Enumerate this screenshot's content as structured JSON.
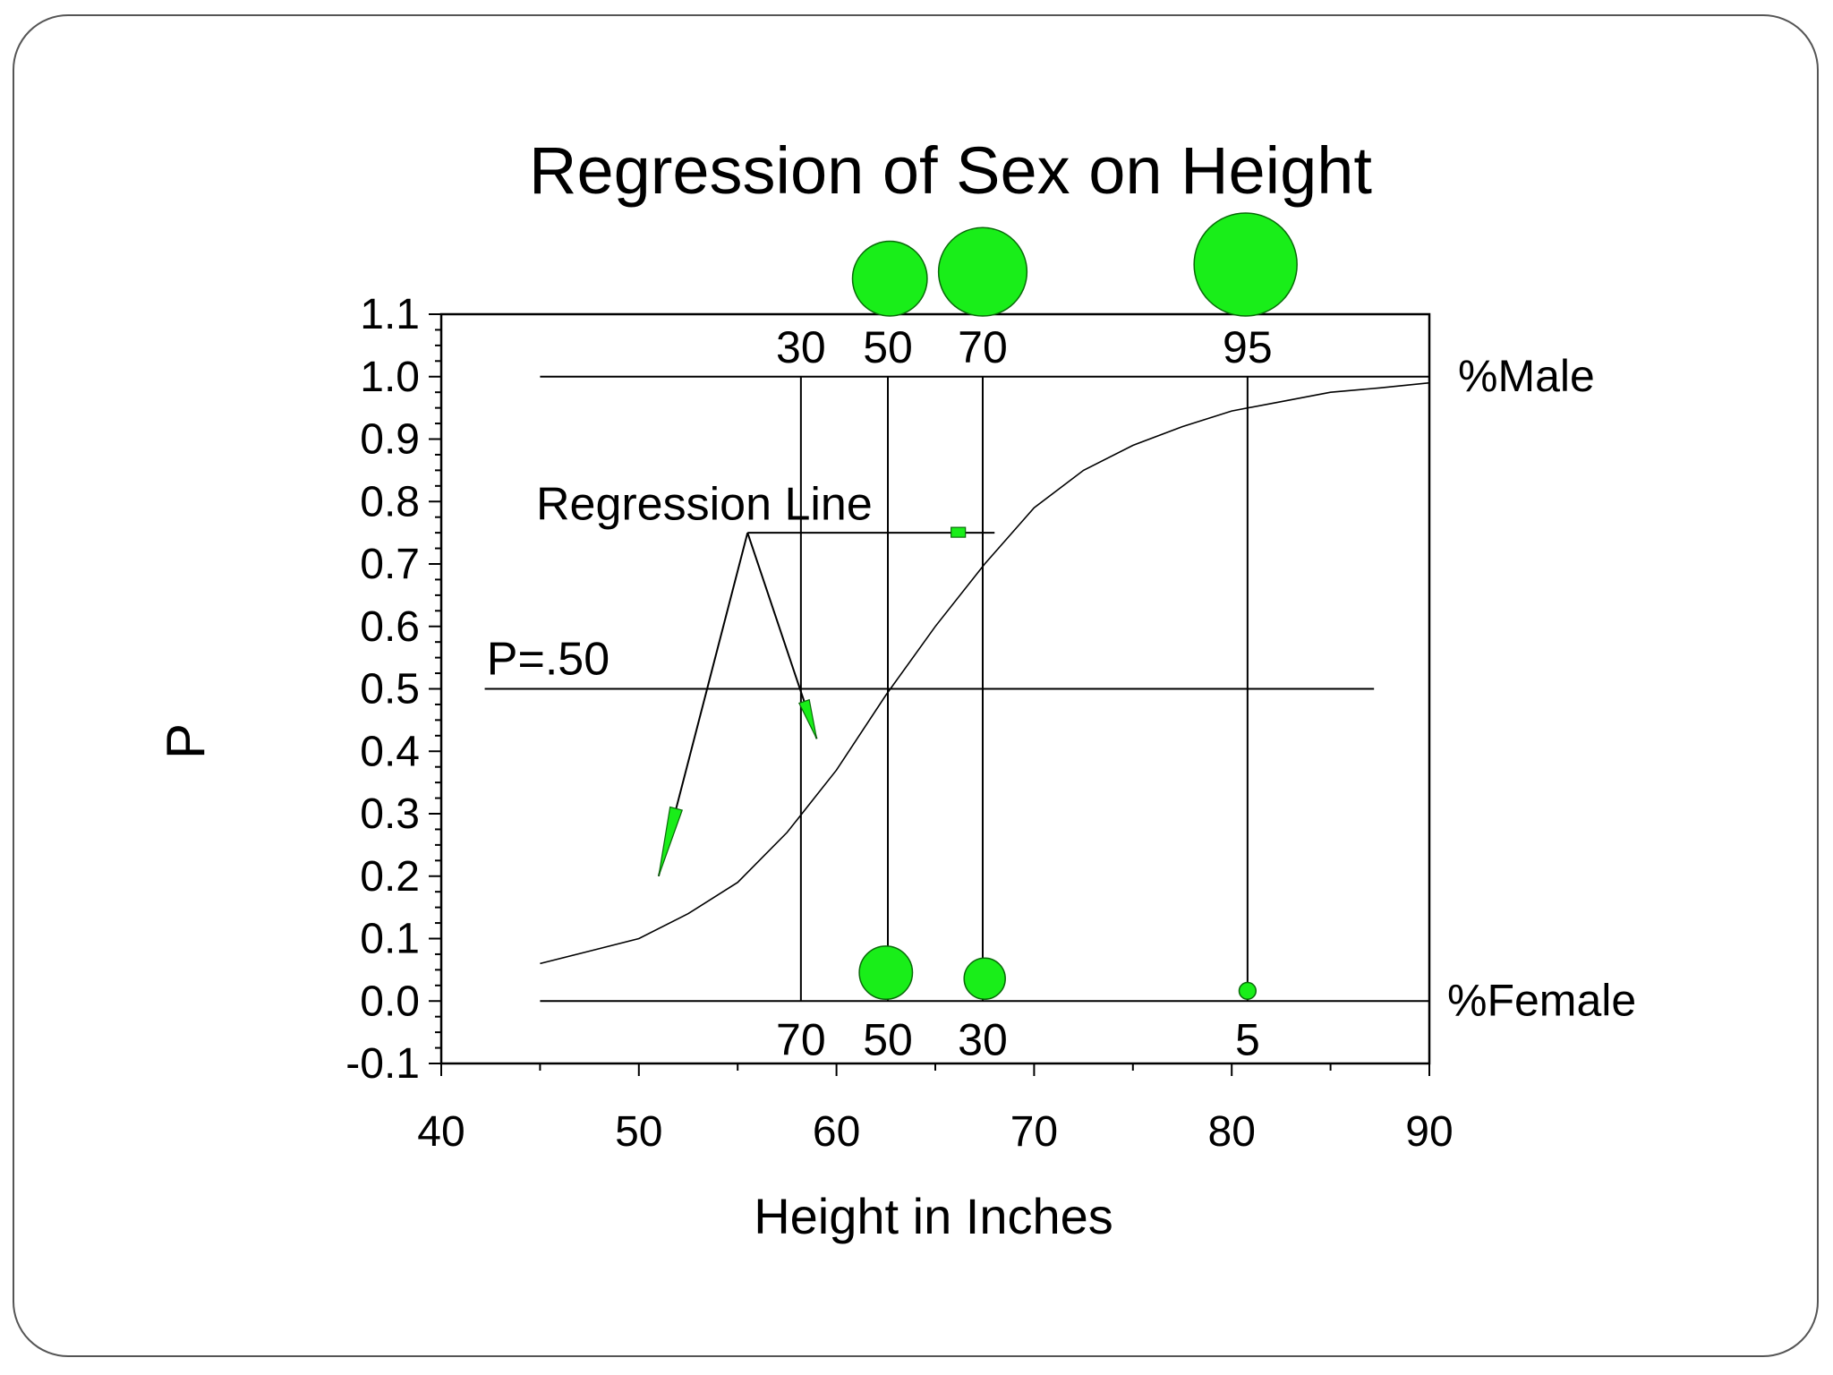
{
  "colors": {
    "bubble_fill": "#19ee19",
    "bubble_stroke": "#0a6a0a",
    "line": "#000000",
    "border": "#555555"
  },
  "chart_data": {
    "type": "scatter",
    "title": "Regression of Sex on Height",
    "xlabel": "Height in Inches",
    "ylabel": "P",
    "xlim": [
      40,
      90
    ],
    "ylim": [
      -0.1,
      1.1
    ],
    "x_ticks": [
      "40",
      "50",
      "60",
      "70",
      "80",
      "90"
    ],
    "y_ticks": [
      "-0.1",
      "0.0",
      "0.1",
      "0.2",
      "0.3",
      "0.4",
      "0.5",
      "0.6",
      "0.7",
      "0.8",
      "0.9",
      "1.0",
      "1.1"
    ],
    "grid": false,
    "regression_curve": {
      "x": [
        45,
        47.5,
        50,
        52.5,
        55,
        57.5,
        60,
        62.5,
        65,
        67.5,
        70,
        72.5,
        75,
        77.5,
        80,
        82.5,
        85,
        87.5,
        90
      ],
      "y": [
        0.06,
        0.08,
        0.1,
        0.14,
        0.19,
        0.27,
        0.37,
        0.49,
        0.6,
        0.7,
        0.79,
        0.85,
        0.89,
        0.92,
        0.945,
        0.96,
        0.975,
        0.982,
        0.99
      ]
    },
    "male_bubbles": [
      {
        "x": 62.7,
        "percent": 50
      },
      {
        "x": 67.4,
        "percent": 70
      },
      {
        "x": 80.7,
        "percent": 95
      }
    ],
    "female_bubbles": [
      {
        "x": 62.5,
        "percent": 50
      },
      {
        "x": 67.5,
        "percent": 30
      },
      {
        "x": 80.8,
        "percent": 5
      }
    ],
    "reference_lines": [
      {
        "y": 1.0,
        "label": "%Male"
      },
      {
        "y": 0.0,
        "label": "%Female"
      },
      {
        "y": 0.5,
        "label": "P=.50"
      }
    ],
    "vertical_lines": [
      {
        "x": 58.2,
        "male_label": "30",
        "female_label": "70"
      },
      {
        "x": 62.6,
        "male_label": "50",
        "female_label": "50"
      },
      {
        "x": 67.4,
        "male_label": "70",
        "female_label": "30"
      },
      {
        "x": 80.8,
        "male_label": "95",
        "female_label": "5"
      }
    ],
    "annotation": "Regression Line"
  }
}
